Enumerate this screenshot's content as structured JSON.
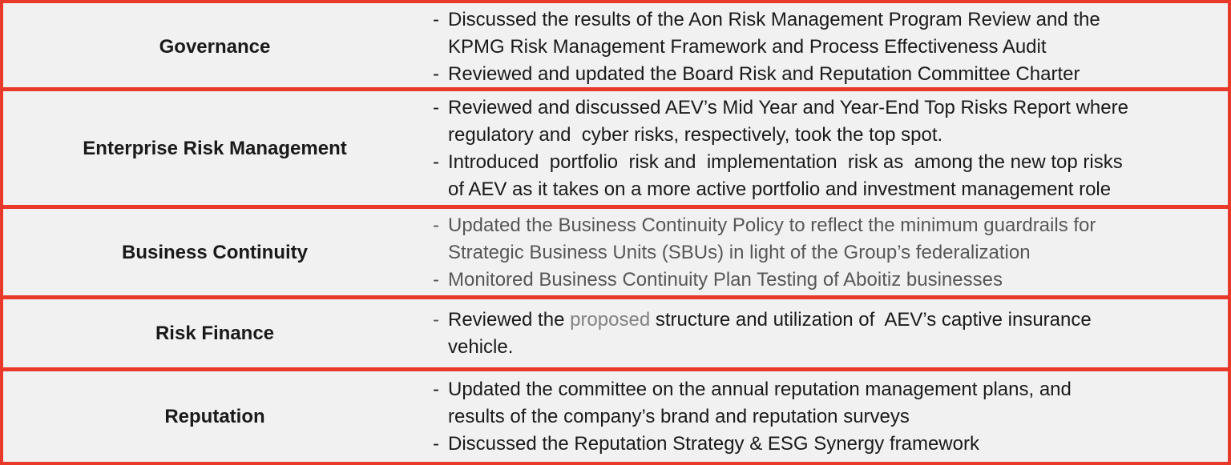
{
  "colors": {
    "border_red": "#e8392b",
    "background": "#f1f1f1",
    "text_black": "#1a1a1a",
    "text_gray": "#575757",
    "text_dim": "#828282"
  },
  "rows": [
    {
      "category": "Governance",
      "items": [
        {
          "dash": "-",
          "segments": [
            {
              "text": "Discussed the results of the Aon Risk Management Program Review and the\nKPMG Risk Management Framework and Process Effectiveness Audit",
              "style": "black"
            }
          ]
        },
        {
          "dash": "-",
          "segments": [
            {
              "text": "Reviewed and updated the Board Risk and Reputation Committee Charter",
              "style": "black"
            }
          ]
        }
      ]
    },
    {
      "category": "Enterprise Risk Management",
      "items": [
        {
          "dash": "-",
          "segments": [
            {
              "text": "Reviewed and discussed AEV’s Mid Year and Year-End Top Risks Report where\nregulatory and  cyber risks, respectively, took the top spot.",
              "style": "black"
            }
          ]
        },
        {
          "dash": "-",
          "segments": [
            {
              "text": "Introduced  portfolio  risk and  implementation  risk as  among the new top risks\nof AEV as it takes on a more active portfolio and investment management role",
              "style": "black"
            }
          ]
        }
      ]
    },
    {
      "category": "Business Continuity",
      "items": [
        {
          "dash": "-",
          "dash_style": "gray",
          "segments": [
            {
              "text": "Updated the Business Continuity Policy to reflect the minimum guardrails for\nStrategic Business Units (SBUs) in light of the Group’s federalization",
              "style": "gray"
            }
          ]
        },
        {
          "dash": "-",
          "dash_style": "gray",
          "segments": [
            {
              "text": "Monitored Business Continuity Plan Testing of Aboitiz businesses",
              "style": "gray"
            }
          ]
        }
      ]
    },
    {
      "category": "Risk Finance",
      "items": [
        {
          "dash": "-",
          "dash_style": "gray",
          "segments": [
            {
              "text": "Reviewed the ",
              "style": "black"
            },
            {
              "text": "proposed",
              "style": "dim"
            },
            {
              "text": " structure and utilization of  AEV’s captive insurance\nvehicle.",
              "style": "black"
            }
          ]
        }
      ]
    },
    {
      "category": "Reputation",
      "items": [
        {
          "dash": "-",
          "segments": [
            {
              "text": "Updated the committee on the annual reputation management plans, and\nresults of the company’s brand and reputation surveys",
              "style": "black"
            }
          ]
        },
        {
          "dash": "-",
          "segments": [
            {
              "text": "Discussed the Reputation Strategy & ESG Synergy framework",
              "style": "black"
            }
          ]
        }
      ]
    }
  ]
}
